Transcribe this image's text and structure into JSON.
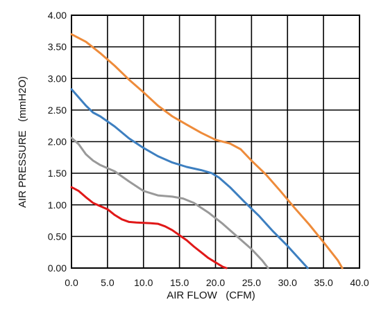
{
  "chart_data": {
    "type": "line",
    "title": "",
    "xlabel": "AIR FLOW   (CFM)",
    "ylabel": "AIR PRESSURE   (mmH2O)",
    "xlim": [
      0,
      40
    ],
    "ylim": [
      0,
      4
    ],
    "x_ticks": [
      "0.0",
      "5.0",
      "10.0",
      "15.0",
      "20.0",
      "25.0",
      "30.0",
      "35.0",
      "40.0"
    ],
    "y_ticks": [
      "0.00",
      "0.50",
      "1.00",
      "1.50",
      "2.00",
      "2.50",
      "3.00",
      "3.50",
      "4.00"
    ],
    "grid": true,
    "legend": "none",
    "series": [
      {
        "color": "#ee8b3a",
        "points": [
          [
            0,
            3.7
          ],
          [
            2,
            3.58
          ],
          [
            4,
            3.4
          ],
          [
            6,
            3.2
          ],
          [
            8,
            2.98
          ],
          [
            10,
            2.78
          ],
          [
            12,
            2.57
          ],
          [
            14,
            2.4
          ],
          [
            16,
            2.27
          ],
          [
            18,
            2.14
          ],
          [
            20,
            2.03
          ],
          [
            22,
            1.97
          ],
          [
            23.5,
            1.88
          ],
          [
            25,
            1.7
          ],
          [
            27,
            1.48
          ],
          [
            29,
            1.22
          ],
          [
            31,
            0.95
          ],
          [
            33,
            0.69
          ],
          [
            35,
            0.41
          ],
          [
            37,
            0.12
          ],
          [
            37.6,
            0.0
          ]
        ]
      },
      {
        "color": "#3d7fc0",
        "points": [
          [
            0,
            2.83
          ],
          [
            1,
            2.7
          ],
          [
            2,
            2.57
          ],
          [
            3,
            2.46
          ],
          [
            4,
            2.4
          ],
          [
            6,
            2.24
          ],
          [
            8,
            2.05
          ],
          [
            10,
            1.9
          ],
          [
            12,
            1.77
          ],
          [
            14,
            1.67
          ],
          [
            16,
            1.6
          ],
          [
            18,
            1.55
          ],
          [
            19.5,
            1.5
          ],
          [
            20.5,
            1.43
          ],
          [
            22,
            1.28
          ],
          [
            24,
            1.05
          ],
          [
            26,
            0.83
          ],
          [
            28,
            0.58
          ],
          [
            30,
            0.35
          ],
          [
            32,
            0.1
          ],
          [
            32.8,
            0.0
          ]
        ]
      },
      {
        "color": "#999999",
        "points": [
          [
            0,
            2.06
          ],
          [
            1,
            1.96
          ],
          [
            2,
            1.8
          ],
          [
            3,
            1.7
          ],
          [
            4,
            1.63
          ],
          [
            6,
            1.53
          ],
          [
            8,
            1.37
          ],
          [
            10,
            1.22
          ],
          [
            12,
            1.15
          ],
          [
            14,
            1.13
          ],
          [
            15.5,
            1.1
          ],
          [
            17,
            1.03
          ],
          [
            19,
            0.88
          ],
          [
            21,
            0.7
          ],
          [
            23,
            0.5
          ],
          [
            25,
            0.3
          ],
          [
            26.5,
            0.12
          ],
          [
            27.3,
            0.0
          ]
        ]
      },
      {
        "color": "#e01818",
        "points": [
          [
            0,
            1.28
          ],
          [
            1,
            1.22
          ],
          [
            2,
            1.12
          ],
          [
            3,
            1.03
          ],
          [
            4,
            0.98
          ],
          [
            5,
            0.93
          ],
          [
            6,
            0.84
          ],
          [
            7,
            0.77
          ],
          [
            8,
            0.73
          ],
          [
            9,
            0.72
          ],
          [
            11,
            0.71
          ],
          [
            12,
            0.7
          ],
          [
            13,
            0.66
          ],
          [
            14,
            0.6
          ],
          [
            15,
            0.52
          ],
          [
            16,
            0.44
          ],
          [
            17,
            0.34
          ],
          [
            18,
            0.25
          ],
          [
            19,
            0.16
          ],
          [
            20,
            0.09
          ],
          [
            21,
            0.02
          ],
          [
            21.5,
            0.0
          ]
        ]
      }
    ]
  }
}
